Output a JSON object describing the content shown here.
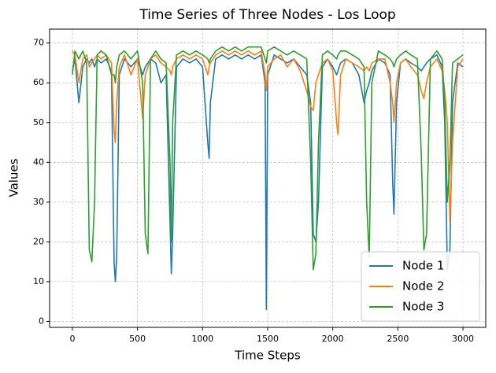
{
  "chart_data": {
    "type": "line",
    "title": "Time Series of Three Nodes - Los Loop",
    "x_label": "Time Steps",
    "y_label": "Values",
    "x": [
      0,
      20,
      50,
      80,
      110,
      130,
      150,
      170,
      190,
      220,
      260,
      300,
      320,
      330,
      340,
      360,
      400,
      450,
      500,
      540,
      560,
      580,
      600,
      640,
      680,
      720,
      750,
      760,
      770,
      800,
      850,
      900,
      950,
      1000,
      1040,
      1050,
      1060,
      1100,
      1150,
      1200,
      1250,
      1300,
      1350,
      1400,
      1450,
      1480,
      1490,
      1500,
      1550,
      1600,
      1650,
      1700,
      1750,
      1800,
      1830,
      1850,
      1870,
      1890,
      1920,
      1960,
      2000,
      2030,
      2040,
      2060,
      2100,
      2150,
      2200,
      2240,
      2260,
      2280,
      2300,
      2350,
      2400,
      2440,
      2460,
      2470,
      2490,
      2520,
      2560,
      2600,
      2650,
      2680,
      2700,
      2720,
      2750,
      2800,
      2840,
      2860,
      2880,
      2900,
      2920,
      2960,
      3000
    ],
    "series": [
      {
        "name": "Node 1",
        "color": "#1f77b4",
        "values": [
          63,
          66,
          55,
          64,
          66,
          65,
          66,
          64,
          66,
          65,
          66,
          63,
          15,
          10,
          16,
          62,
          66,
          64,
          66,
          62,
          64,
          65,
          66,
          65,
          60,
          62,
          25,
          12,
          22,
          64,
          66,
          65,
          66,
          64,
          45,
          41,
          55,
          66,
          67,
          66,
          67,
          66,
          67,
          66,
          67,
          60,
          3,
          62,
          67,
          66,
          65,
          66,
          64,
          62,
          55,
          22,
          20,
          30,
          64,
          66,
          64,
          62,
          63,
          65,
          66,
          65,
          62,
          55,
          58,
          60,
          63,
          66,
          65,
          62,
          35,
          27,
          55,
          65,
          66,
          65,
          64,
          63,
          64,
          65,
          66,
          67,
          64,
          50,
          13,
          18,
          55,
          65,
          64
        ]
      },
      {
        "name": "Node 2",
        "color": "#ff7f0e",
        "values": [
          68,
          67,
          60,
          66,
          67,
          64,
          65,
          66,
          67,
          66,
          67,
          65,
          48,
          45,
          55,
          64,
          67,
          62,
          66,
          51,
          62,
          64,
          66,
          67,
          65,
          64,
          63,
          62,
          64,
          66,
          67,
          66,
          67,
          66,
          62,
          64,
          65,
          67,
          68,
          67,
          68,
          67,
          68,
          67,
          68,
          62,
          58,
          64,
          66,
          67,
          64,
          66,
          63,
          58,
          54,
          53,
          60,
          62,
          65,
          66,
          63,
          50,
          47,
          62,
          66,
          65,
          64,
          63,
          64,
          63,
          65,
          66,
          66,
          60,
          55,
          50,
          60,
          65,
          66,
          64,
          62,
          58,
          56,
          60,
          64,
          66,
          63,
          58,
          50,
          25,
          45,
          64,
          66
        ]
      },
      {
        "name": "Node 3",
        "color": "#2ca02c",
        "values": [
          62,
          68,
          66,
          68,
          65,
          18,
          15,
          30,
          67,
          68,
          67,
          62,
          62,
          60,
          64,
          67,
          68,
          66,
          68,
          60,
          22,
          17,
          66,
          68,
          66,
          65,
          40,
          20,
          50,
          67,
          68,
          67,
          68,
          67,
          66,
          65,
          66,
          68,
          69,
          68,
          69,
          68,
          69,
          69,
          69,
          66,
          65,
          68,
          69,
          68,
          67,
          68,
          67,
          66,
          40,
          13,
          17,
          45,
          67,
          68,
          67,
          66,
          67,
          68,
          68,
          67,
          66,
          64,
          30,
          16,
          60,
          68,
          67,
          66,
          65,
          64,
          66,
          67,
          68,
          67,
          66,
          42,
          18,
          22,
          66,
          68,
          66,
          55,
          30,
          40,
          65,
          66,
          67
        ]
      }
    ],
    "xlim": [
      -175,
      3175
    ],
    "ylim": [
      -1.5,
      73.5
    ],
    "xticks": [
      0,
      500,
      1000,
      1500,
      2000,
      2500,
      3000
    ],
    "yticks": [
      0,
      10,
      20,
      30,
      40,
      50,
      60,
      70
    ],
    "grid": true,
    "legend": "lower right"
  }
}
